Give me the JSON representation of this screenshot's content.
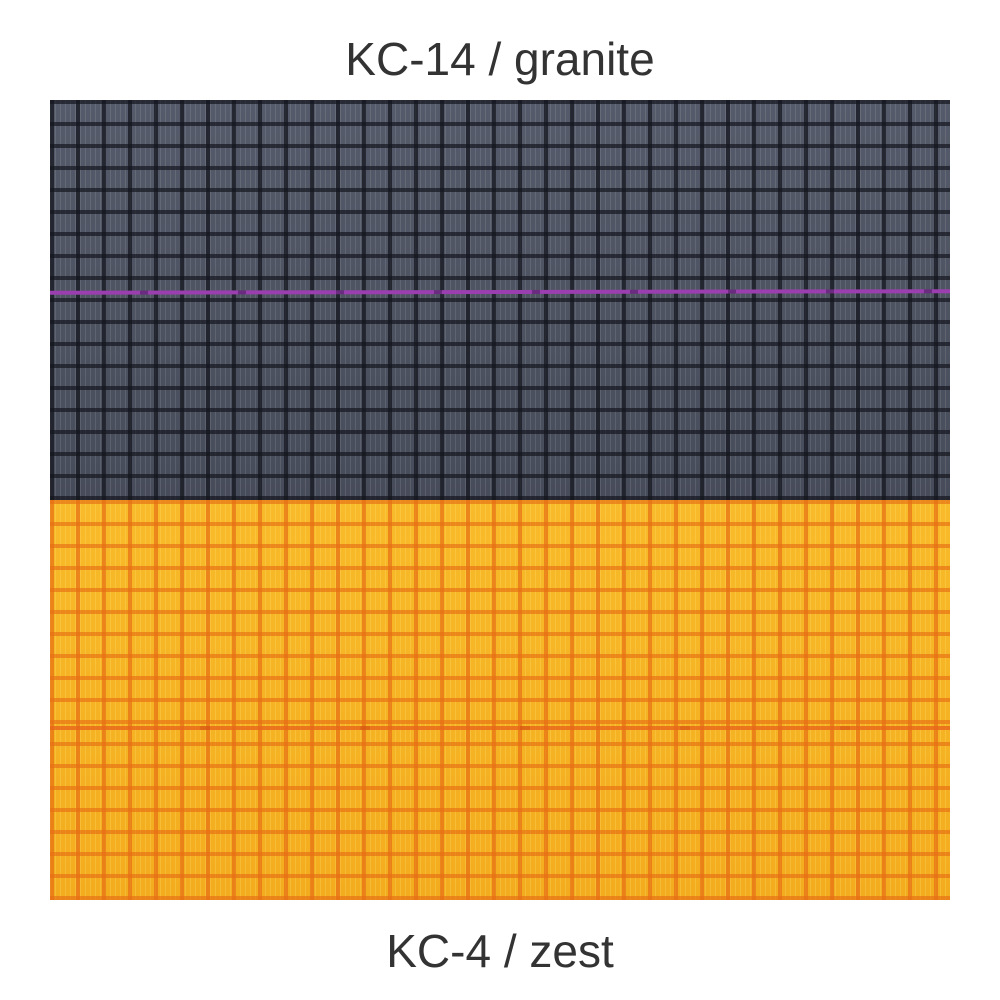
{
  "swatches": [
    {
      "label": "KC-14 / granite",
      "color": "#4d5362",
      "stitch_color": "#9b3fb0"
    },
    {
      "label": "KC-4 / zest",
      "color": "#f6b423",
      "stitch_color": "#e8651a"
    }
  ]
}
